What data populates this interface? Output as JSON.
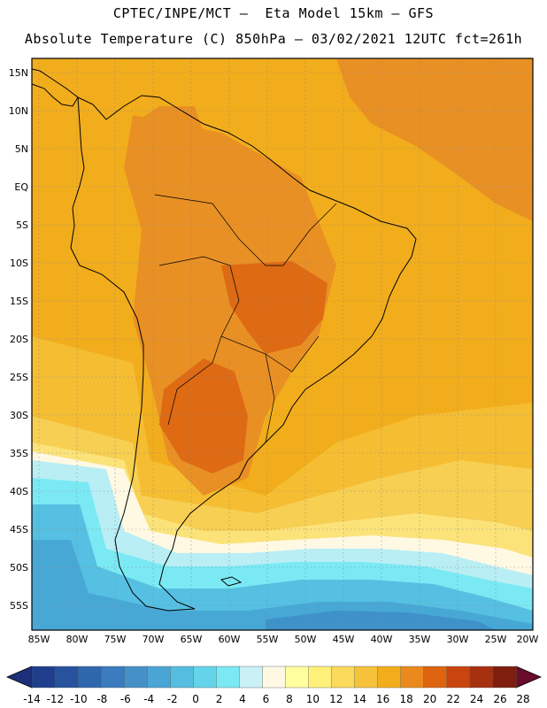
{
  "header": {
    "line1": "CPTEC/INPE/MCT –  Eta Model 15km – GFS",
    "line2": "Absolute Temperature (C) 850hPa – 03/02/2021 12UTC fct=261h"
  },
  "axes": {
    "lat_labels": [
      "15N",
      "10N",
      "5N",
      "EQ",
      "5S",
      "10S",
      "15S",
      "20S",
      "25S",
      "30S",
      "35S",
      "40S",
      "45S",
      "50S",
      "55S"
    ],
    "lon_labels": [
      "85W",
      "80W",
      "75W",
      "70W",
      "65W",
      "60W",
      "55W",
      "50W",
      "45W",
      "40W",
      "35W",
      "30W",
      "25W",
      "20W"
    ]
  },
  "colorbar": {
    "labels": [
      "-14",
      "-12",
      "-10",
      "-8",
      "-6",
      "-4",
      "-2",
      "0",
      "2",
      "4",
      "6",
      "8",
      "10",
      "12",
      "14",
      "16",
      "18",
      "20",
      "22",
      "24",
      "26",
      "28"
    ],
    "colors": [
      "#1f3f8c",
      "#27539e",
      "#2f67ad",
      "#3a7cbd",
      "#4690c8",
      "#4aa5d4",
      "#55bde0",
      "#64d4ea",
      "#7ae9f4",
      "#c9f1f6",
      "#fff9e4",
      "#ffffa0",
      "#fff07a",
      "#fbd95a",
      "#f6c23c",
      "#f2ad1c",
      "#e9891e",
      "#de6410",
      "#c94510",
      "#a7300f",
      "#7f1d0f"
    ],
    "under_color": "#1c2f78",
    "over_color": "#6a0c2c"
  },
  "field_colors": {
    "t10": "#fff9e4",
    "t12": "#fbe37a",
    "t14": "#f7cf52",
    "t16": "#f5bd32",
    "t18": "#f2ad1c",
    "t20": "#e99024",
    "t22": "#de6a14",
    "t2": "#7ae9f4",
    "t4": "#b9eef4",
    "t0": "#55c0e2",
    "tm2": "#47a8d6",
    "tm4": "#3e92c9"
  }
}
